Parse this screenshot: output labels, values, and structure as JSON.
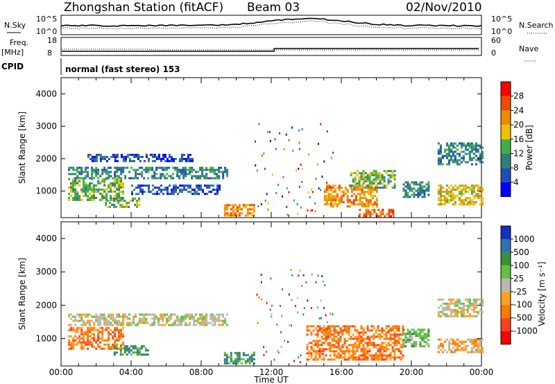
{
  "header": {
    "station": "Zhongshan Station (fitACF)",
    "beam": "Beam 03",
    "date": "02/Nov/2010"
  },
  "top_strips": {
    "left_labels": {
      "nsky": "N.Sky",
      "freq_line1": "Freq.",
      "freq_line2": "[MHz]",
      "cpid": "CPID"
    },
    "right_labels": {
      "nsearch": "N.Search",
      "nave": "Nave"
    },
    "noise_ticks_left": [
      "10^5",
      "10^0"
    ],
    "noise_ticks_right": [
      "10^5",
      "10^0"
    ],
    "freq_ticks": [
      "18",
      "8"
    ],
    "nave_ticks": [
      "60",
      "0"
    ],
    "cpid_text": "normal (fast stereo) 153"
  },
  "chart_data": [
    {
      "type": "heatmap",
      "panel": "power",
      "ylabel": "Slant Range [km]",
      "ylim": [
        180,
        4500
      ],
      "yticks": [
        "1000",
        "2000",
        "3000",
        "4000"
      ],
      "x_range_hours": [
        0,
        24
      ],
      "colorbar": {
        "label": "Power [dB]",
        "ticks": [
          "4",
          "8",
          "12",
          "16",
          "20",
          "24",
          "28"
        ],
        "colors": [
          "#0000ff",
          "#1f4fb4",
          "#2f7f77",
          "#3fb048",
          "#f0c000",
          "#f08a00",
          "#f04a00",
          "#ff0000"
        ]
      },
      "regions": [
        {
          "t0": 0.4,
          "t1": 9.5,
          "r0": 1400,
          "r1": 1750,
          "level": 2
        },
        {
          "t0": 0.4,
          "t1": 3.5,
          "r0": 700,
          "r1": 1400,
          "level": 3
        },
        {
          "t0": 1.5,
          "t1": 7.5,
          "r0": 1950,
          "r1": 2150,
          "level": 1
        },
        {
          "t0": 2.5,
          "t1": 4.5,
          "r0": 500,
          "r1": 800,
          "level": 3
        },
        {
          "t0": 4.0,
          "t1": 9.0,
          "r0": 900,
          "r1": 1200,
          "level": 1
        },
        {
          "t0": 9.3,
          "t1": 11.0,
          "r0": 250,
          "r1": 600,
          "level": 5
        },
        {
          "t0": 15.0,
          "t1": 18.0,
          "r0": 500,
          "r1": 1200,
          "level": 5
        },
        {
          "t0": 16.5,
          "t1": 19.0,
          "r0": 1100,
          "r1": 1650,
          "level": 3
        },
        {
          "t0": 17.0,
          "t1": 19.0,
          "r0": 200,
          "r1": 450,
          "level": 6
        },
        {
          "t0": 19.5,
          "t1": 21.0,
          "r0": 800,
          "r1": 1300,
          "level": 2
        },
        {
          "t0": 21.5,
          "t1": 24.0,
          "r0": 1800,
          "r1": 2500,
          "level": 2
        },
        {
          "t0": 21.5,
          "t1": 24.0,
          "r0": 600,
          "r1": 1200,
          "level": 4
        }
      ]
    },
    {
      "type": "heatmap",
      "panel": "velocity",
      "ylabel": "Slant Range [km]",
      "ylim": [
        180,
        4500
      ],
      "yticks": [
        "1000",
        "2000",
        "3000",
        "4000"
      ],
      "colorbar": {
        "label": "Velocity [m s⁻¹]",
        "ticks": [
          "1000",
          "500",
          "100",
          "25",
          "-25",
          "-100",
          "-500",
          "-1000"
        ],
        "colors": [
          "#1030c0",
          "#3070b0",
          "#3a8f3a",
          "#60c040",
          "#b8b8b0",
          "#ffa020",
          "#ff7a00",
          "#ff4020",
          "#ff0000"
        ]
      },
      "regions": [
        {
          "t0": 0.4,
          "t1": 9.5,
          "r0": 1400,
          "r1": 1750,
          "level": 4
        },
        {
          "t0": 0.4,
          "t1": 3.5,
          "r0": 700,
          "r1": 1350,
          "level": 6
        },
        {
          "t0": 3.0,
          "t1": 5.0,
          "r0": 550,
          "r1": 800,
          "level": 2
        },
        {
          "t0": 9.3,
          "t1": 11.0,
          "r0": 250,
          "r1": 600,
          "level": 2
        },
        {
          "t0": 14.0,
          "t1": 19.5,
          "r0": 400,
          "r1": 1400,
          "level": 6
        },
        {
          "t0": 19.5,
          "t1": 21.0,
          "r0": 800,
          "r1": 1300,
          "level": 3
        },
        {
          "t0": 21.5,
          "t1": 24.0,
          "r0": 1700,
          "r1": 2200,
          "level": 4
        },
        {
          "t0": 21.5,
          "t1": 24.0,
          "r0": 600,
          "r1": 1000,
          "level": 5
        }
      ]
    }
  ],
  "x_axis": {
    "label": "Time UT",
    "ticks": [
      "00:00",
      "04:00",
      "08:00",
      "12:00",
      "16:00",
      "20:00",
      "00:00"
    ]
  }
}
